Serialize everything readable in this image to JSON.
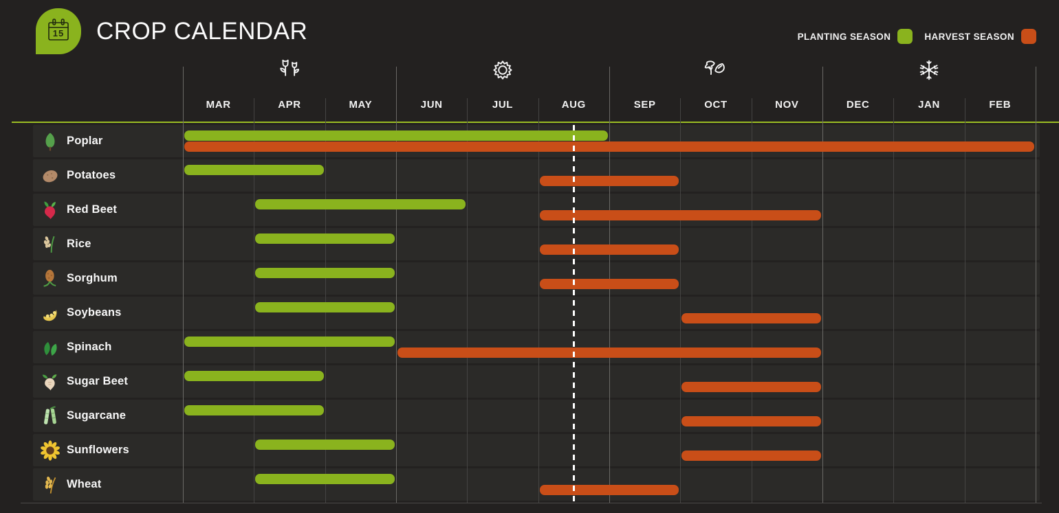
{
  "header": {
    "title": "CROP CALENDAR",
    "logo_day": "15"
  },
  "legend": {
    "planting_label": "PLANTING SEASON",
    "harvest_label": "HARVEST SEASON"
  },
  "colors": {
    "background": "#232120",
    "row_band": "#2b2a28",
    "planting": "#8ab31e",
    "harvest": "#c94e18",
    "accent": "#9cbe23",
    "grid_line": "#454443",
    "season_line": "#6a6966",
    "today_line": "#ffffff"
  },
  "seasons": [
    {
      "name": "spring",
      "icon": "spring-flowers-icon",
      "month": "APR"
    },
    {
      "name": "summer",
      "icon": "summer-sun-icon",
      "month": "JUL"
    },
    {
      "name": "autumn",
      "icon": "autumn-leaves-icon",
      "month": "OCT"
    },
    {
      "name": "winter",
      "icon": "winter-snowflake-icon",
      "month": "JAN"
    }
  ],
  "today": {
    "month": "AUG",
    "month_offset_from_start": 5.5,
    "marker_style": "dashed-vertical-line"
  },
  "chart_data": {
    "type": "bar",
    "subtype": "gantt-crop-calendar",
    "title": "CROP CALENDAR",
    "x_axis": {
      "categories": [
        "MAR",
        "APR",
        "MAY",
        "JUN",
        "JUL",
        "AUG",
        "SEP",
        "OCT",
        "NOV",
        "DEC",
        "JAN",
        "FEB"
      ],
      "season_groups": [
        {
          "season": "spring",
          "months": [
            "MAR",
            "APR",
            "MAY"
          ]
        },
        {
          "season": "summer",
          "months": [
            "JUN",
            "JUL",
            "AUG"
          ]
        },
        {
          "season": "autumn",
          "months": [
            "SEP",
            "OCT",
            "NOV"
          ]
        },
        {
          "season": "winter",
          "months": [
            "DEC",
            "JAN",
            "FEB"
          ]
        }
      ]
    },
    "legend": {
      "entries": [
        "PLANTING SEASON",
        "HARVEST SEASON"
      ],
      "colors": [
        "#8ab31e",
        "#c94e18"
      ],
      "position": "top-right"
    },
    "grid": "vertical month boundaries, on",
    "annotations": [
      {
        "type": "vline",
        "style": "white dashed",
        "position": "mid-AUG"
      }
    ],
    "series": [
      {
        "name": "Poplar",
        "icon": "poplar",
        "planting": [
          "MAR",
          "AUG"
        ],
        "harvest": [
          "MAR",
          "FEB"
        ]
      },
      {
        "name": "Potatoes",
        "icon": "potato",
        "planting": [
          "MAR",
          "APR"
        ],
        "harvest": [
          "AUG",
          "SEP"
        ]
      },
      {
        "name": "Red Beet",
        "icon": "red-beet",
        "planting": [
          "APR",
          "JUN"
        ],
        "harvest": [
          "AUG",
          "NOV"
        ]
      },
      {
        "name": "Rice",
        "icon": "rice",
        "planting": [
          "APR",
          "MAY"
        ],
        "harvest": [
          "AUG",
          "SEP"
        ]
      },
      {
        "name": "Sorghum",
        "icon": "sorghum",
        "planting": [
          "APR",
          "MAY"
        ],
        "harvest": [
          "AUG",
          "SEP"
        ]
      },
      {
        "name": "Soybeans",
        "icon": "soybeans",
        "planting": [
          "APR",
          "MAY"
        ],
        "harvest": [
          "OCT",
          "NOV"
        ]
      },
      {
        "name": "Spinach",
        "icon": "spinach",
        "planting": [
          "MAR",
          "MAY"
        ],
        "harvest": [
          "JUN",
          "NOV"
        ]
      },
      {
        "name": "Sugar Beet",
        "icon": "sugar-beet",
        "planting": [
          "MAR",
          "APR"
        ],
        "harvest": [
          "OCT",
          "NOV"
        ]
      },
      {
        "name": "Sugarcane",
        "icon": "sugarcane",
        "planting": [
          "MAR",
          "APR"
        ],
        "harvest": [
          "OCT",
          "NOV"
        ]
      },
      {
        "name": "Sunflowers",
        "icon": "sunflower",
        "planting": [
          "APR",
          "MAY"
        ],
        "harvest": [
          "OCT",
          "NOV"
        ]
      },
      {
        "name": "Wheat",
        "icon": "wheat",
        "planting": [
          "APR",
          "MAY"
        ],
        "harvest": [
          "AUG",
          "SEP"
        ]
      }
    ]
  }
}
